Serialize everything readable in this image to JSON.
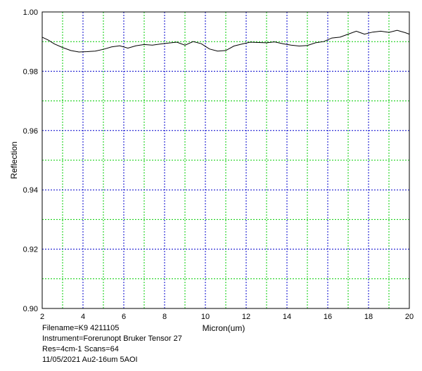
{
  "chart_data": {
    "type": "line",
    "xlabel": "Micron(um)",
    "ylabel": "Reflection",
    "xlim": [
      2,
      20
    ],
    "ylim": [
      0.9,
      1.0
    ],
    "x_ticks": [
      2,
      4,
      6,
      8,
      10,
      12,
      14,
      16,
      18,
      20
    ],
    "x_tick_labels": [
      "2",
      "4",
      "6",
      "8",
      "10",
      "12",
      "14",
      "16",
      "18",
      "20"
    ],
    "y_ticks": [
      0.9,
      0.92,
      0.94,
      0.96,
      0.98,
      1.0
    ],
    "y_tick_labels": [
      "0.90",
      "0.92",
      "0.94",
      "0.96",
      "0.98",
      "1.00"
    ],
    "x_minor_grid": [
      3,
      5,
      7,
      9,
      11,
      13,
      15,
      17,
      19
    ],
    "y_minor_grid": [
      0.91,
      0.93,
      0.95,
      0.97,
      0.99
    ],
    "grid": true,
    "series": [
      {
        "x": [
          2.0,
          2.3,
          2.6,
          3.0,
          3.4,
          3.8,
          4.2,
          4.6,
          5.0,
          5.4,
          5.8,
          6.2,
          6.6,
          7.0,
          7.4,
          7.8,
          8.2,
          8.6,
          9.0,
          9.4,
          9.8,
          10.2,
          10.6,
          11.0,
          11.4,
          11.8,
          12.2,
          12.6,
          13.0,
          13.4,
          13.8,
          14.2,
          14.6,
          15.0,
          15.4,
          15.8,
          16.2,
          16.6,
          17.0,
          17.4,
          17.8,
          18.2,
          18.6,
          19.0,
          19.4,
          19.8,
          20.0
        ],
        "y": [
          0.9915,
          0.9905,
          0.9892,
          0.988,
          0.987,
          0.9865,
          0.9866,
          0.9868,
          0.9874,
          0.9882,
          0.9886,
          0.9878,
          0.9886,
          0.989,
          0.9888,
          0.9892,
          0.9895,
          0.9898,
          0.9888,
          0.99,
          0.9893,
          0.9875,
          0.9868,
          0.987,
          0.9885,
          0.9892,
          0.9898,
          0.9897,
          0.9896,
          0.9899,
          0.9893,
          0.9888,
          0.9885,
          0.9887,
          0.9896,
          0.99,
          0.9912,
          0.9915,
          0.9925,
          0.9935,
          0.9925,
          0.9932,
          0.9935,
          0.9931,
          0.9938,
          0.993,
          0.9925
        ],
        "color": "#000000"
      }
    ],
    "colors": {
      "major_grid": "#0000cc",
      "minor_grid": "#00cc00",
      "line": "#000000"
    }
  },
  "meta": {
    "filename": "Filename=K9 4211105",
    "instrument": "Instrument=Forerunopt Bruker Tensor 27",
    "res_scans": "Res=4cm-1  Scans=64",
    "date_note": "11/05/2021 Au2-16um 5AOI"
  }
}
